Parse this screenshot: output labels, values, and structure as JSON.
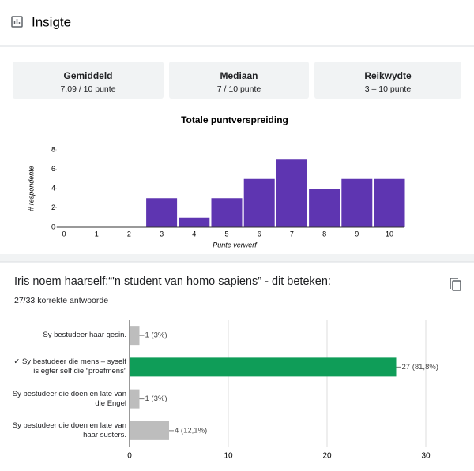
{
  "header": {
    "title": "Insigte"
  },
  "stats": [
    {
      "label": "Gemiddeld",
      "value": "7,09 / 10 punte"
    },
    {
      "label": "Mediaan",
      "value": "7 / 10 punte"
    },
    {
      "label": "Reikwydte",
      "value": "3 – 10 punte"
    }
  ],
  "chart_data": [
    {
      "type": "bar",
      "title": "Totale puntverspreiding",
      "categories": [
        "0",
        "1",
        "2",
        "3",
        "4",
        "5",
        "6",
        "7",
        "8",
        "9",
        "10"
      ],
      "values": [
        0,
        0,
        0,
        3,
        1,
        3,
        5,
        7,
        4,
        5,
        5
      ],
      "color": "#5e35b1",
      "x_label": "Punte verwerf",
      "y_label": "# respondente",
      "ylim": [
        0,
        8
      ],
      "yticks": [
        0,
        2,
        4,
        6,
        8
      ],
      "grid": false
    },
    {
      "type": "hbar",
      "title": "Iris noem haarself:“'n student van homo sapiens” - dit beteken:",
      "subtitle": "27/33 korrekte antwoorde",
      "categories": [
        "Sy bestudeer haar gesin.",
        "✓ Sy bestudeer die mens – syself is egter self die “proefmens”",
        "Sy bestudeer die doen en late van die Engel",
        "Sy bestudeer die doen en late van haar susters."
      ],
      "values": [
        1,
        27,
        1,
        4
      ],
      "value_labels": [
        "1 (3%)",
        "27 (81,8%)",
        "1 (3%)",
        "4 (12,1%)"
      ],
      "colors": [
        "#bdbdbd",
        "#0f9d58",
        "#bdbdbd",
        "#bdbdbd"
      ],
      "xlim": [
        0,
        30
      ],
      "xticks": [
        0,
        10,
        20,
        30
      ],
      "grid": true
    }
  ]
}
